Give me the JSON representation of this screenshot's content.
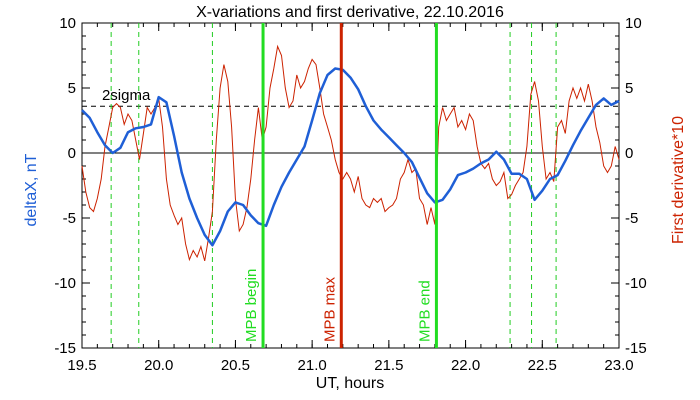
{
  "chart_data": {
    "type": "line",
    "title": "X-variations and first derivative, 22.10.2016",
    "xlabel": "UT, hours",
    "ylabel_left": "deltaX, nT",
    "ylabel_right": "First derivative*10",
    "xlim": [
      19.5,
      23.0
    ],
    "ylim_left": [
      -15,
      10
    ],
    "ylim_right": [
      -15,
      10
    ],
    "x_ticks": [
      "19.5",
      "20.0",
      "20.5",
      "21.0",
      "21.5",
      "22.0",
      "22.5",
      "23.0"
    ],
    "y_ticks_left": [
      "-15",
      "-10",
      "-5",
      "0",
      "5",
      "10"
    ],
    "y_ticks_right": [
      "-15",
      "-10",
      "-5",
      "0",
      "5",
      "10"
    ],
    "grid": false,
    "sigma_label": "2sigma",
    "sigma_level": 3.6,
    "colors": {
      "deltaX": "#1f5fd6",
      "derivative": "#cc2200",
      "mpb_edge": "#22dd22",
      "mpb_max": "#cc2200",
      "guide": "#22cc22"
    },
    "guide_lines_x": [
      19.69,
      19.87,
      20.35,
      22.29,
      22.43,
      22.59
    ],
    "markers": [
      {
        "x": 20.68,
        "label": "MPB begin",
        "role": "edge"
      },
      {
        "x": 21.19,
        "label": "MPB max",
        "role": "max"
      },
      {
        "x": 21.81,
        "label": "MPB end",
        "role": "edge"
      }
    ],
    "series": [
      {
        "name": "deltaX, nT",
        "x": [
          19.5,
          19.55,
          19.6,
          19.65,
          19.7,
          19.75,
          19.8,
          19.85,
          19.9,
          19.95,
          20.0,
          20.05,
          20.1,
          20.15,
          20.2,
          20.25,
          20.3,
          20.35,
          20.4,
          20.45,
          20.5,
          20.55,
          20.6,
          20.65,
          20.7,
          20.75,
          20.8,
          20.85,
          20.9,
          20.95,
          21.0,
          21.05,
          21.1,
          21.15,
          21.2,
          21.25,
          21.3,
          21.35,
          21.4,
          21.45,
          21.5,
          21.55,
          21.6,
          21.65,
          21.7,
          21.75,
          21.8,
          21.85,
          21.9,
          21.95,
          22.0,
          22.05,
          22.1,
          22.15,
          22.2,
          22.25,
          22.3,
          22.35,
          22.4,
          22.45,
          22.5,
          22.55,
          22.6,
          22.65,
          22.7,
          22.75,
          22.8,
          22.85,
          22.9,
          22.95,
          23.0
        ],
        "values": [
          3.3,
          2.7,
          1.6,
          0.6,
          0.0,
          0.4,
          1.6,
          1.9,
          2.0,
          2.2,
          4.3,
          3.9,
          1.3,
          -1.5,
          -3.5,
          -5.0,
          -6.3,
          -7.1,
          -6.0,
          -4.5,
          -3.8,
          -4.0,
          -4.8,
          -5.4,
          -5.6,
          -4.0,
          -2.6,
          -1.5,
          -0.5,
          0.5,
          2.5,
          4.6,
          6.0,
          6.5,
          6.4,
          5.8,
          4.9,
          3.6,
          2.5,
          1.8,
          1.2,
          0.6,
          0.0,
          -0.7,
          -1.9,
          -3.1,
          -3.8,
          -3.6,
          -2.8,
          -1.7,
          -1.5,
          -1.2,
          -0.8,
          -0.5,
          0.1,
          -0.5,
          -1.6,
          -1.6,
          -2.0,
          -3.6,
          -2.9,
          -2.0,
          -1.7,
          -0.6,
          0.6,
          1.7,
          2.7,
          3.7,
          4.2,
          3.7,
          4.0
        ]
      },
      {
        "name": "First derivative*10",
        "x": [
          19.5,
          19.525,
          19.55,
          19.575,
          19.6,
          19.625,
          19.65,
          19.675,
          19.7,
          19.725,
          19.75,
          19.775,
          19.8,
          19.825,
          19.85,
          19.875,
          19.9,
          19.925,
          19.95,
          19.975,
          20.0,
          20.025,
          20.05,
          20.075,
          20.1,
          20.125,
          20.15,
          20.175,
          20.2,
          20.225,
          20.25,
          20.275,
          20.3,
          20.325,
          20.35,
          20.375,
          20.4,
          20.425,
          20.45,
          20.475,
          20.5,
          20.525,
          20.55,
          20.575,
          20.6,
          20.625,
          20.65,
          20.675,
          20.7,
          20.725,
          20.75,
          20.775,
          20.8,
          20.825,
          20.85,
          20.875,
          20.9,
          20.925,
          20.95,
          20.975,
          21.0,
          21.025,
          21.05,
          21.075,
          21.1,
          21.125,
          21.15,
          21.175,
          21.2,
          21.225,
          21.25,
          21.275,
          21.3,
          21.325,
          21.35,
          21.375,
          21.4,
          21.425,
          21.45,
          21.475,
          21.5,
          21.525,
          21.55,
          21.575,
          21.6,
          21.625,
          21.65,
          21.675,
          21.7,
          21.725,
          21.75,
          21.775,
          21.8,
          21.825,
          21.85,
          21.875,
          21.9,
          21.925,
          21.95,
          21.975,
          22.0,
          22.025,
          22.05,
          22.075,
          22.1,
          22.125,
          22.15,
          22.175,
          22.2,
          22.225,
          22.25,
          22.275,
          22.3,
          22.325,
          22.35,
          22.375,
          22.4,
          22.425,
          22.45,
          22.475,
          22.5,
          22.525,
          22.55,
          22.575,
          22.6,
          22.625,
          22.65,
          22.675,
          22.7,
          22.725,
          22.75,
          22.775,
          22.8,
          22.825,
          22.85,
          22.875,
          22.9,
          22.925,
          22.95,
          22.975,
          23.0
        ],
        "values": [
          -1.0,
          -3.0,
          -4.2,
          -4.5,
          -3.5,
          -2.0,
          0.5,
          2.0,
          3.5,
          3.8,
          3.5,
          2.2,
          3.0,
          2.5,
          1.0,
          -0.5,
          1.5,
          3.5,
          3.0,
          3.5,
          4.2,
          2.0,
          -2.0,
          -4.0,
          -4.8,
          -5.5,
          -5.0,
          -7.0,
          -8.2,
          -7.5,
          -8.0,
          -7.2,
          -8.3,
          -6.5,
          -4.5,
          1.0,
          5.0,
          6.8,
          5.5,
          2.0,
          -3.5,
          -6.0,
          -5.5,
          -4.2,
          -2.0,
          1.0,
          3.5,
          1.0,
          2.0,
          5.0,
          6.5,
          8.2,
          7.5,
          5.0,
          3.5,
          4.0,
          6.0,
          5.0,
          5.5,
          6.5,
          7.2,
          6.8,
          5.0,
          3.0,
          2.0,
          1.0,
          -0.5,
          -1.5,
          -2.0,
          -1.5,
          -2.0,
          -3.0,
          -1.8,
          -3.5,
          -4.0,
          -4.2,
          -3.5,
          -3.8,
          -3.5,
          -4.5,
          -4.2,
          -4.0,
          -3.5,
          -2.0,
          -1.5,
          -0.5,
          -1.5,
          -1.2,
          -3.5,
          -4.0,
          -5.5,
          -4.2,
          -5.5,
          2.0,
          3.5,
          2.5,
          3.0,
          3.5,
          2.0,
          2.5,
          1.8,
          3.0,
          2.5,
          0.5,
          -0.8,
          -1.2,
          -0.8,
          -2.0,
          -2.5,
          -2.2,
          -1.5,
          -3.5,
          -3.2,
          -2.5,
          -2.0,
          -1.5,
          0.5,
          4.5,
          5.5,
          4.0,
          0.5,
          -2.0,
          -1.5,
          -2.2,
          2.0,
          2.5,
          1.5,
          4.0,
          5.0,
          4.2,
          5.0,
          4.0,
          5.3,
          4.0,
          2.0,
          0.8,
          -1.0,
          -1.5,
          -1.0,
          0.5,
          -0.5
        ]
      }
    ]
  }
}
